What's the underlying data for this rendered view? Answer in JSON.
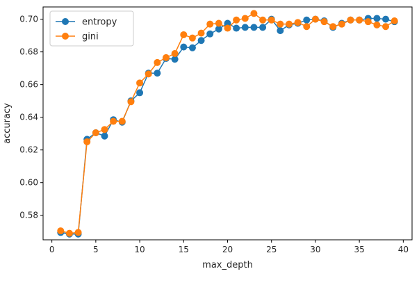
{
  "chart_data": {
    "type": "line",
    "title": "",
    "xlabel": "max_depth",
    "ylabel": "accuracy",
    "xlim": [
      -1,
      41
    ],
    "ylim": [
      0.565,
      0.7075
    ],
    "xticks": [
      0,
      5,
      10,
      15,
      20,
      25,
      30,
      35,
      40
    ],
    "yticks": [
      0.58,
      0.6,
      0.62,
      0.64,
      0.66,
      0.68,
      0.7
    ],
    "ytick_labels": [
      "0.58",
      "0.60",
      "0.62",
      "0.64",
      "0.66",
      "0.68",
      "0.70"
    ],
    "grid": false,
    "legend_position": "top-left",
    "x": [
      1,
      2,
      3,
      4,
      5,
      6,
      7,
      8,
      9,
      10,
      11,
      12,
      13,
      14,
      15,
      16,
      17,
      18,
      19,
      20,
      21,
      22,
      23,
      24,
      25,
      26,
      27,
      28,
      29,
      30,
      31,
      32,
      33,
      34,
      35,
      36,
      37,
      38,
      39
    ],
    "series": [
      {
        "name": "entropy",
        "color": "#1f77b4",
        "values": [
          0.5695,
          0.5685,
          0.5685,
          0.6265,
          0.6305,
          0.6285,
          0.6385,
          0.637,
          0.65,
          0.655,
          0.667,
          0.667,
          0.676,
          0.6755,
          0.683,
          0.6825,
          0.687,
          0.691,
          0.694,
          0.6975,
          0.6945,
          0.695,
          0.695,
          0.695,
          0.7,
          0.693,
          0.6965,
          0.6975,
          0.6995,
          0.7,
          0.699,
          0.695,
          0.6975,
          0.6995,
          0.6995,
          0.7005,
          0.7005,
          0.7,
          0.6985
        ]
      },
      {
        "name": "gini",
        "color": "#ff7f0e",
        "values": [
          0.5705,
          0.569,
          0.5695,
          0.625,
          0.6305,
          0.6325,
          0.6375,
          0.6375,
          0.6495,
          0.661,
          0.6665,
          0.6735,
          0.6765,
          0.679,
          0.6905,
          0.6885,
          0.6915,
          0.697,
          0.6975,
          0.6945,
          0.6995,
          0.7005,
          0.7035,
          0.6995,
          0.6995,
          0.697,
          0.697,
          0.698,
          0.6955,
          0.7,
          0.6985,
          0.6955,
          0.697,
          0.6995,
          0.6995,
          0.6985,
          0.6965,
          0.6955,
          0.699
        ]
      }
    ]
  }
}
